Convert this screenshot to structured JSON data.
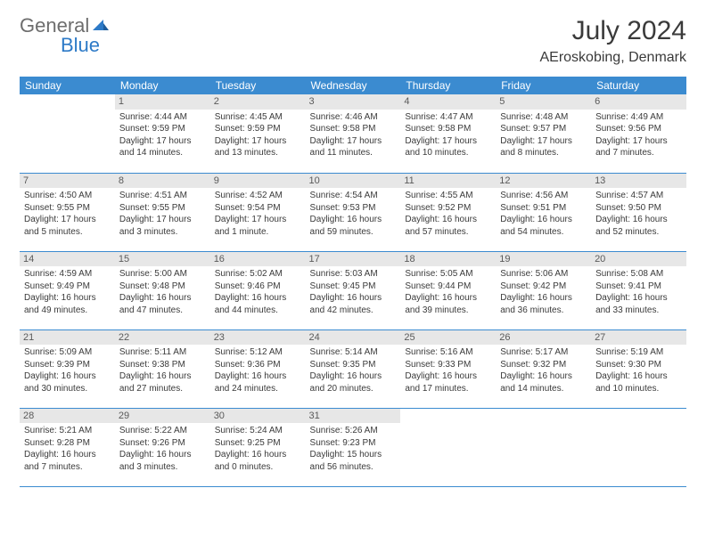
{
  "logo": {
    "word1": "General",
    "word2": "Blue"
  },
  "title": "July 2024",
  "location": "AEroskobing, Denmark",
  "colors": {
    "header_bg": "#3b8bd0",
    "header_fg": "#ffffff",
    "daynum_bg": "#e7e7e7",
    "text": "#3a3a3a",
    "logo_gray": "#6d6d6d",
    "logo_blue": "#2d7ac7",
    "rule": "#3b8bd0"
  },
  "weekdays": [
    "Sunday",
    "Monday",
    "Tuesday",
    "Wednesday",
    "Thursday",
    "Friday",
    "Saturday"
  ],
  "weeks": [
    [
      null,
      {
        "n": "1",
        "sr": "Sunrise: 4:44 AM",
        "ss": "Sunset: 9:59 PM",
        "d1": "Daylight: 17 hours",
        "d2": "and 14 minutes."
      },
      {
        "n": "2",
        "sr": "Sunrise: 4:45 AM",
        "ss": "Sunset: 9:59 PM",
        "d1": "Daylight: 17 hours",
        "d2": "and 13 minutes."
      },
      {
        "n": "3",
        "sr": "Sunrise: 4:46 AM",
        "ss": "Sunset: 9:58 PM",
        "d1": "Daylight: 17 hours",
        "d2": "and 11 minutes."
      },
      {
        "n": "4",
        "sr": "Sunrise: 4:47 AM",
        "ss": "Sunset: 9:58 PM",
        "d1": "Daylight: 17 hours",
        "d2": "and 10 minutes."
      },
      {
        "n": "5",
        "sr": "Sunrise: 4:48 AM",
        "ss": "Sunset: 9:57 PM",
        "d1": "Daylight: 17 hours",
        "d2": "and 8 minutes."
      },
      {
        "n": "6",
        "sr": "Sunrise: 4:49 AM",
        "ss": "Sunset: 9:56 PM",
        "d1": "Daylight: 17 hours",
        "d2": "and 7 minutes."
      }
    ],
    [
      {
        "n": "7",
        "sr": "Sunrise: 4:50 AM",
        "ss": "Sunset: 9:55 PM",
        "d1": "Daylight: 17 hours",
        "d2": "and 5 minutes."
      },
      {
        "n": "8",
        "sr": "Sunrise: 4:51 AM",
        "ss": "Sunset: 9:55 PM",
        "d1": "Daylight: 17 hours",
        "d2": "and 3 minutes."
      },
      {
        "n": "9",
        "sr": "Sunrise: 4:52 AM",
        "ss": "Sunset: 9:54 PM",
        "d1": "Daylight: 17 hours",
        "d2": "and 1 minute."
      },
      {
        "n": "10",
        "sr": "Sunrise: 4:54 AM",
        "ss": "Sunset: 9:53 PM",
        "d1": "Daylight: 16 hours",
        "d2": "and 59 minutes."
      },
      {
        "n": "11",
        "sr": "Sunrise: 4:55 AM",
        "ss": "Sunset: 9:52 PM",
        "d1": "Daylight: 16 hours",
        "d2": "and 57 minutes."
      },
      {
        "n": "12",
        "sr": "Sunrise: 4:56 AM",
        "ss": "Sunset: 9:51 PM",
        "d1": "Daylight: 16 hours",
        "d2": "and 54 minutes."
      },
      {
        "n": "13",
        "sr": "Sunrise: 4:57 AM",
        "ss": "Sunset: 9:50 PM",
        "d1": "Daylight: 16 hours",
        "d2": "and 52 minutes."
      }
    ],
    [
      {
        "n": "14",
        "sr": "Sunrise: 4:59 AM",
        "ss": "Sunset: 9:49 PM",
        "d1": "Daylight: 16 hours",
        "d2": "and 49 minutes."
      },
      {
        "n": "15",
        "sr": "Sunrise: 5:00 AM",
        "ss": "Sunset: 9:48 PM",
        "d1": "Daylight: 16 hours",
        "d2": "and 47 minutes."
      },
      {
        "n": "16",
        "sr": "Sunrise: 5:02 AM",
        "ss": "Sunset: 9:46 PM",
        "d1": "Daylight: 16 hours",
        "d2": "and 44 minutes."
      },
      {
        "n": "17",
        "sr": "Sunrise: 5:03 AM",
        "ss": "Sunset: 9:45 PM",
        "d1": "Daylight: 16 hours",
        "d2": "and 42 minutes."
      },
      {
        "n": "18",
        "sr": "Sunrise: 5:05 AM",
        "ss": "Sunset: 9:44 PM",
        "d1": "Daylight: 16 hours",
        "d2": "and 39 minutes."
      },
      {
        "n": "19",
        "sr": "Sunrise: 5:06 AM",
        "ss": "Sunset: 9:42 PM",
        "d1": "Daylight: 16 hours",
        "d2": "and 36 minutes."
      },
      {
        "n": "20",
        "sr": "Sunrise: 5:08 AM",
        "ss": "Sunset: 9:41 PM",
        "d1": "Daylight: 16 hours",
        "d2": "and 33 minutes."
      }
    ],
    [
      {
        "n": "21",
        "sr": "Sunrise: 5:09 AM",
        "ss": "Sunset: 9:39 PM",
        "d1": "Daylight: 16 hours",
        "d2": "and 30 minutes."
      },
      {
        "n": "22",
        "sr": "Sunrise: 5:11 AM",
        "ss": "Sunset: 9:38 PM",
        "d1": "Daylight: 16 hours",
        "d2": "and 27 minutes."
      },
      {
        "n": "23",
        "sr": "Sunrise: 5:12 AM",
        "ss": "Sunset: 9:36 PM",
        "d1": "Daylight: 16 hours",
        "d2": "and 24 minutes."
      },
      {
        "n": "24",
        "sr": "Sunrise: 5:14 AM",
        "ss": "Sunset: 9:35 PM",
        "d1": "Daylight: 16 hours",
        "d2": "and 20 minutes."
      },
      {
        "n": "25",
        "sr": "Sunrise: 5:16 AM",
        "ss": "Sunset: 9:33 PM",
        "d1": "Daylight: 16 hours",
        "d2": "and 17 minutes."
      },
      {
        "n": "26",
        "sr": "Sunrise: 5:17 AM",
        "ss": "Sunset: 9:32 PM",
        "d1": "Daylight: 16 hours",
        "d2": "and 14 minutes."
      },
      {
        "n": "27",
        "sr": "Sunrise: 5:19 AM",
        "ss": "Sunset: 9:30 PM",
        "d1": "Daylight: 16 hours",
        "d2": "and 10 minutes."
      }
    ],
    [
      {
        "n": "28",
        "sr": "Sunrise: 5:21 AM",
        "ss": "Sunset: 9:28 PM",
        "d1": "Daylight: 16 hours",
        "d2": "and 7 minutes."
      },
      {
        "n": "29",
        "sr": "Sunrise: 5:22 AM",
        "ss": "Sunset: 9:26 PM",
        "d1": "Daylight: 16 hours",
        "d2": "and 3 minutes."
      },
      {
        "n": "30",
        "sr": "Sunrise: 5:24 AM",
        "ss": "Sunset: 9:25 PM",
        "d1": "Daylight: 16 hours",
        "d2": "and 0 minutes."
      },
      {
        "n": "31",
        "sr": "Sunrise: 5:26 AM",
        "ss": "Sunset: 9:23 PM",
        "d1": "Daylight: 15 hours",
        "d2": "and 56 minutes."
      },
      null,
      null,
      null
    ]
  ]
}
